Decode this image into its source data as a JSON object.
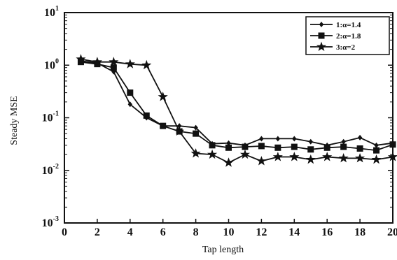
{
  "chart_data": {
    "type": "line",
    "title": "",
    "xlabel": "Tap length",
    "ylabel": "Steady MSE",
    "xlim": [
      0,
      20
    ],
    "ylim": [
      0.001,
      10
    ],
    "yscale": "log",
    "grid": false,
    "legend_position": "top-right",
    "x_ticks": [
      0,
      2,
      4,
      6,
      8,
      10,
      12,
      14,
      16,
      18,
      20
    ],
    "x_tick_labels": [
      "0",
      "2",
      "4",
      "6",
      "8",
      "10",
      "12",
      "14",
      "16",
      "18",
      "20"
    ],
    "y_ticks": [
      {
        "value": 10,
        "base": "10",
        "exp": "1"
      },
      {
        "value": 1,
        "base": "10",
        "exp": "0"
      },
      {
        "value": 0.1,
        "base": "10",
        "exp": "-1"
      },
      {
        "value": 0.01,
        "base": "10",
        "exp": "-2"
      },
      {
        "value": 0.001,
        "base": "10",
        "exp": "-3"
      }
    ],
    "series": [
      {
        "name": "1:α=1.4",
        "marker": "diamond",
        "x": [
          1,
          2,
          3,
          4,
          5,
          6,
          7,
          8,
          9,
          10,
          11,
          12,
          13,
          14,
          15,
          16,
          17,
          18,
          19,
          20
        ],
        "values": [
          1.2,
          1.1,
          0.75,
          0.18,
          0.1,
          0.07,
          0.07,
          0.065,
          0.032,
          0.033,
          0.03,
          0.04,
          0.04,
          0.04,
          0.035,
          0.03,
          0.035,
          0.042,
          0.03,
          0.033
        ]
      },
      {
        "name": "2:α=1.8",
        "marker": "square",
        "x": [
          1,
          2,
          3,
          4,
          5,
          6,
          7,
          8,
          9,
          10,
          11,
          12,
          13,
          14,
          15,
          16,
          17,
          18,
          19,
          20
        ],
        "values": [
          1.15,
          1.05,
          0.9,
          0.3,
          0.11,
          0.07,
          0.055,
          0.05,
          0.03,
          0.027,
          0.028,
          0.029,
          0.027,
          0.028,
          0.025,
          0.027,
          0.028,
          0.026,
          0.024,
          0.031
        ]
      },
      {
        "name": "3:α=2",
        "marker": "star",
        "x": [
          1,
          2,
          3,
          4,
          5,
          6,
          7,
          8,
          9,
          10,
          11,
          12,
          13,
          14,
          15,
          16,
          17,
          18,
          19,
          20
        ],
        "values": [
          1.3,
          1.15,
          1.15,
          1.05,
          1.0,
          0.25,
          0.055,
          0.021,
          0.02,
          0.014,
          0.02,
          0.015,
          0.018,
          0.018,
          0.016,
          0.018,
          0.017,
          0.017,
          0.016,
          0.018
        ]
      }
    ]
  }
}
